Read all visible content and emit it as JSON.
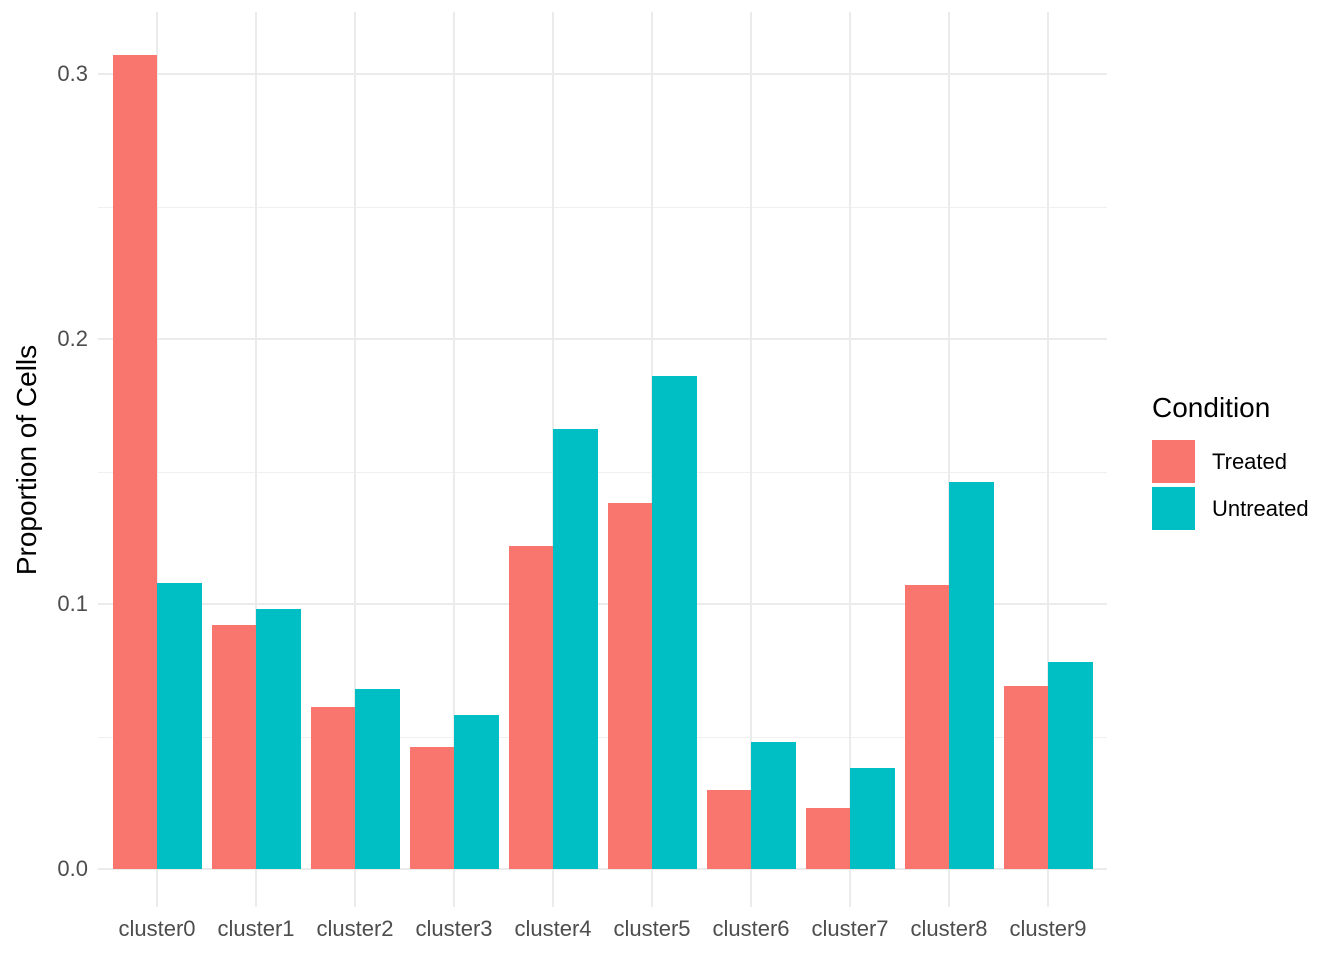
{
  "chart_data": {
    "type": "bar",
    "title": "",
    "categories": [
      "cluster0",
      "cluster1",
      "cluster2",
      "cluster3",
      "cluster4",
      "cluster5",
      "cluster6",
      "cluster7",
      "cluster8",
      "cluster9"
    ],
    "series": [
      {
        "name": "Treated",
        "color": "#F8766D",
        "values": [
          0.307,
          0.092,
          0.061,
          0.046,
          0.122,
          0.138,
          0.03,
          0.023,
          0.107,
          0.069
        ]
      },
      {
        "name": "Untreated",
        "color": "#00BFC4",
        "values": [
          0.108,
          0.098,
          0.068,
          0.058,
          0.166,
          0.186,
          0.048,
          0.038,
          0.146,
          0.078
        ]
      }
    ],
    "xlabel": "",
    "ylabel": "Proportion of Cells",
    "y_ticks": [
      0,
      0.1,
      0.2,
      0.3
    ],
    "y_tick_labels": [
      "0.0",
      "0.1",
      "0.2",
      "0.3"
    ],
    "y_minor_ticks": [
      0.05,
      0.15,
      0.25
    ],
    "ylim": [
      -0.014,
      0.323
    ],
    "grid": "major-and-minor-horizontal, major-vertical-at-category-centers",
    "grid_color": "#EBEBEB",
    "background": "#FFFFFF",
    "tick_label_color": "#4D4D4D",
    "bar_grouping": "dodge",
    "legend": {
      "title": "Condition",
      "position": "right"
    }
  }
}
